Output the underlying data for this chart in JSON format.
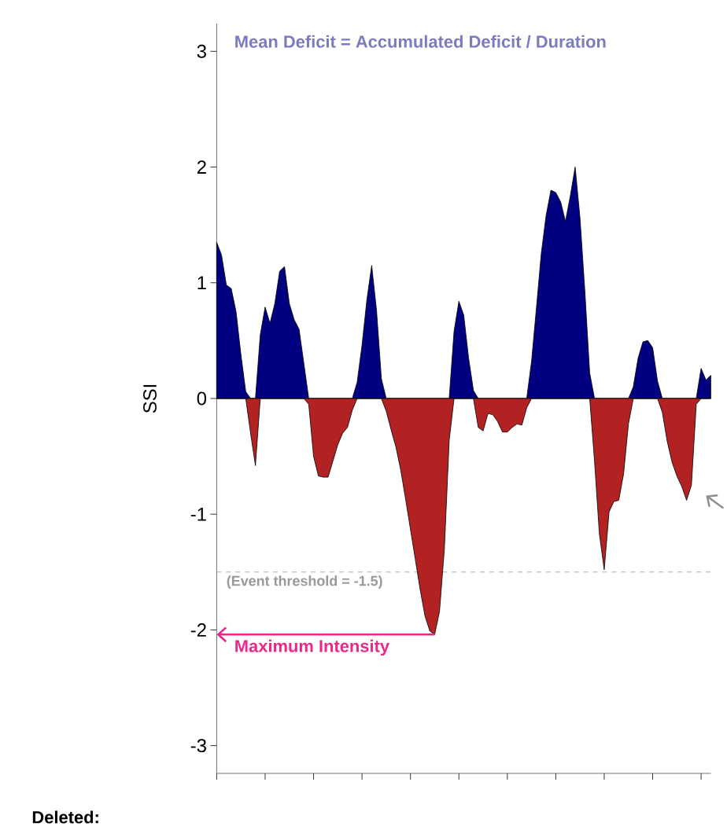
{
  "chart_data": {
    "type": "area",
    "ylabel": "SSI",
    "tick_labels": "y",
    "categories": [
      null,
      null,
      null,
      null,
      null,
      null,
      null,
      null,
      null,
      null,
      null,
      null,
      null,
      null,
      null,
      null,
      null,
      null,
      null,
      null,
      null,
      null,
      null,
      null,
      null,
      null,
      null,
      null,
      null,
      null,
      null,
      null,
      null,
      null,
      null,
      null,
      null,
      null,
      null,
      null,
      null,
      null,
      null,
      null,
      null,
      null,
      null,
      null,
      null,
      null,
      null,
      null,
      null,
      null,
      null,
      null,
      null,
      null,
      null,
      null,
      null,
      null,
      null,
      null,
      null,
      null,
      null,
      null,
      null,
      null,
      null,
      null,
      null,
      null,
      null,
      null,
      null,
      null,
      null,
      null,
      null,
      null,
      null,
      null,
      null,
      null,
      null,
      null,
      null,
      null,
      null,
      null,
      null,
      null,
      null,
      null,
      null,
      null,
      null,
      null,
      null,
      null,
      null
    ],
    "ylim": [
      -3.24,
      3.24
    ],
    "yticks": [
      -3,
      -2,
      -1,
      0,
      1,
      2,
      3
    ],
    "series": [
      {
        "color": "#000080",
        "values": [
          1.35,
          1.24,
          0.98,
          0.95,
          0.75,
          0.38,
          0.06,
          0,
          0,
          0.55,
          0.79,
          0.65,
          0.82,
          1.1,
          1.14,
          0.82,
          0.68,
          0.6,
          0.3,
          0,
          0,
          0,
          0,
          0,
          0,
          0,
          0,
          0,
          0,
          0.14,
          0.46,
          0.85,
          1.15,
          0.76,
          0.17,
          0,
          0,
          0,
          0,
          0,
          0,
          0,
          0,
          0,
          0,
          0,
          0,
          0,
          0,
          0.58,
          0.84,
          0.72,
          0.35,
          0.07,
          0,
          0,
          0,
          0,
          0,
          0,
          0,
          0,
          0,
          0,
          0,
          0.32,
          0.78,
          1.25,
          1.58,
          1.8,
          1.78,
          1.7,
          1.53,
          1.75,
          2.0,
          1.56,
          0.93,
          0.22,
          0,
          0,
          0,
          0,
          0,
          0,
          0,
          0,
          0.1,
          0.35,
          0.49,
          0.5,
          0.44,
          0.15,
          0,
          0,
          0,
          0,
          0,
          0,
          0,
          0,
          0.26,
          0.16,
          0.2
        ]
      },
      {
        "color": "#b22222",
        "values": [
          0,
          0,
          0,
          0,
          0,
          0,
          0,
          -0.3,
          -0.58,
          0,
          0,
          0,
          0,
          0,
          0,
          0,
          0,
          0,
          0,
          -0.05,
          -0.5,
          -0.67,
          -0.68,
          -0.68,
          -0.54,
          -0.4,
          -0.3,
          -0.25,
          -0.1,
          0,
          0,
          0,
          0,
          0,
          0,
          -0.11,
          -0.27,
          -0.42,
          -0.62,
          -0.87,
          -1.13,
          -1.39,
          -1.65,
          -1.88,
          -2.01,
          -2.04,
          -1.84,
          -1.3,
          -0.36,
          0,
          0,
          0,
          0,
          0,
          -0.25,
          -0.28,
          -0.13,
          -0.14,
          -0.2,
          -0.29,
          -0.29,
          -0.25,
          -0.22,
          -0.23,
          -0.08,
          0,
          0,
          0,
          0,
          0,
          0,
          0,
          0,
          0,
          0,
          0,
          0,
          0,
          -0.54,
          -1.17,
          -1.48,
          -0.98,
          -0.89,
          -0.88,
          -0.65,
          -0.22,
          0,
          0,
          0,
          0,
          0,
          0,
          -0.12,
          -0.37,
          -0.55,
          -0.67,
          -0.76,
          -0.88,
          -0.75,
          -0.05,
          0,
          0,
          0
        ]
      }
    ],
    "ref_lines": [
      {
        "axis": "y",
        "value": -1.5,
        "label": "(Event threshold = -1.5)",
        "color": "#999999",
        "line_style": "dashed"
      }
    ],
    "annotations": [
      "Mean Deficit = Accumulated Deficit / Duration",
      "Maximum Intensity",
      "Deleted:"
    ]
  }
}
